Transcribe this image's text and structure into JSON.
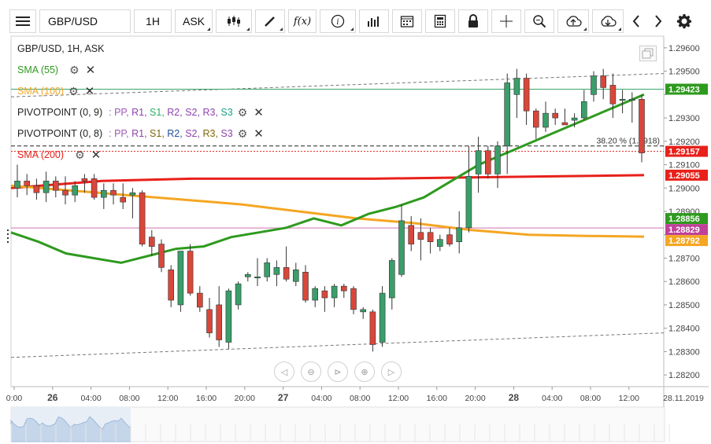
{
  "toolbar": {
    "symbol": "GBP/USD",
    "timeframe": "1H",
    "price_type": "ASK",
    "buttons": [
      "menu-icon",
      "candles-icon",
      "draw-icon",
      "function-icon",
      "info-icon",
      "bars-icon",
      "calendar-icon",
      "calculator-icon",
      "lock-icon",
      "crosshair-icon",
      "zoom-icon",
      "upload-icon",
      "download-icon",
      "chevron-left-icon",
      "chevron-right-icon",
      "gear-icon"
    ]
  },
  "legend": {
    "header": "GBP/USD, 1H, ASK",
    "sma55": "SMA (55)",
    "sma100": "SMA (100)",
    "pivot1_label": "PIVOTPOINT (0, 9)",
    "pivot1_levels": [
      {
        "t": ": PP, ",
        "c": "#9b59b6"
      },
      {
        "t": "R1, ",
        "c": "#8e44ad"
      },
      {
        "t": "S1, ",
        "c": "#27ae60"
      },
      {
        "t": "R2, ",
        "c": "#8e44ad"
      },
      {
        "t": "S2, ",
        "c": "#8e44ad"
      },
      {
        "t": "R3, ",
        "c": "#8e44ad"
      },
      {
        "t": "S3",
        "c": "#16a085"
      }
    ],
    "pivot2_label": "PIVOTPOINT (0, 8)",
    "pivot2_levels": [
      {
        "t": ": PP, ",
        "c": "#9b59b6"
      },
      {
        "t": "R1, ",
        "c": "#8e44ad"
      },
      {
        "t": "S1, ",
        "c": "#7d6608"
      },
      {
        "t": "R2, ",
        "c": "#1f4e9c"
      },
      {
        "t": "S2, ",
        "c": "#8e44ad"
      },
      {
        "t": "R3, ",
        "c": "#7d6608"
      },
      {
        "t": "S3",
        "c": "#8e44ad"
      }
    ],
    "sma200": "SMA (200)"
  },
  "colors": {
    "sma55": "#2e9a1e",
    "sma100": "#f5a623",
    "sma200": "#e8201a",
    "up": "#3a9e6a",
    "down": "#d9473a",
    "pivot": "#d98ec0"
  },
  "chart_data": {
    "type": "candlestick",
    "symbol": "GBP/USD",
    "interval": "1H",
    "ylim": [
      1.2815,
      1.2965
    ],
    "y_ticks": [
      1.296,
      1.295,
      1.294,
      1.293,
      1.292,
      1.291,
      1.29,
      1.289,
      1.288,
      1.287,
      1.286,
      1.285,
      1.284,
      1.283,
      1.282
    ],
    "y_tick_labels": [
      "1.29600",
      "1.29500",
      "",
      "1.29300",
      "1.29200",
      "1.29100",
      "1.29000",
      "1.28900",
      "",
      "1.28700",
      "1.28600",
      "1.28500",
      "1.28400",
      "1.28300",
      "1.28200"
    ],
    "x_ticks": [
      {
        "i": 0,
        "label": "0:00"
      },
      {
        "i": 2,
        "label": "26"
      },
      {
        "i": 4,
        "label": "04:00"
      },
      {
        "i": 6,
        "label": "08:00"
      },
      {
        "i": 8,
        "label": "12:00"
      },
      {
        "i": 10,
        "label": "16:00"
      },
      {
        "i": 12,
        "label": "20:00"
      },
      {
        "i": 14,
        "label": "27"
      },
      {
        "i": 16,
        "label": "04:00"
      },
      {
        "i": 18,
        "label": "08:00"
      },
      {
        "i": 20,
        "label": "12:00"
      },
      {
        "i": 22,
        "label": "16:00"
      },
      {
        "i": 24,
        "label": "20:00"
      },
      {
        "i": 26,
        "label": "28"
      },
      {
        "i": 28,
        "label": "04:00"
      },
      {
        "i": 30,
        "label": "08:00"
      },
      {
        "i": 32,
        "label": "12:00"
      }
    ],
    "x_last_label": "28.11.2019",
    "candles": [
      [
        1.29,
        1.291,
        1.2896,
        1.2903
      ],
      [
        1.2903,
        1.2906,
        1.2897,
        1.2901
      ],
      [
        1.2901,
        1.2904,
        1.2895,
        1.2898
      ],
      [
        1.2898,
        1.2907,
        1.2894,
        1.2903
      ],
      [
        1.2903,
        1.2905,
        1.2896,
        1.2899
      ],
      [
        1.2899,
        1.2905,
        1.2893,
        1.2897
      ],
      [
        1.2897,
        1.2903,
        1.2894,
        1.2901
      ],
      [
        1.2904,
        1.2906,
        1.2898,
        1.2903
      ],
      [
        1.2904,
        1.2906,
        1.2895,
        1.2896
      ],
      [
        1.2896,
        1.2902,
        1.2891,
        1.2899
      ],
      [
        1.2899,
        1.2902,
        1.2893,
        1.2897
      ],
      [
        1.2896,
        1.2902,
        1.2891,
        1.2894
      ],
      [
        1.2897,
        1.29,
        1.2887,
        1.2898
      ],
      [
        1.2898,
        1.2899,
        1.2875,
        1.2876
      ],
      [
        1.2879,
        1.2882,
        1.2871,
        1.2875
      ],
      [
        1.2876,
        1.2878,
        1.2864,
        1.2866
      ],
      [
        1.2865,
        1.2867,
        1.2849,
        1.2852
      ],
      [
        1.285,
        1.2872,
        1.2847,
        1.2873
      ],
      [
        1.2873,
        1.2876,
        1.2854,
        1.2855
      ],
      [
        1.2855,
        1.2858,
        1.2847,
        1.2849
      ],
      [
        1.2848,
        1.2853,
        1.2836,
        1.2838
      ],
      [
        1.285,
        1.2858,
        1.2832,
        1.2835
      ],
      [
        1.2834,
        1.2857,
        1.2831,
        1.2856
      ],
      [
        1.285,
        1.286,
        1.2848,
        1.2859
      ],
      [
        1.2862,
        1.2864,
        1.286,
        1.2863
      ],
      [
        1.2862,
        1.287,
        1.2858,
        1.2862
      ],
      [
        1.2862,
        1.287,
        1.286,
        1.2868
      ],
      [
        1.2863,
        1.2869,
        1.2858,
        1.2866
      ],
      [
        1.2866,
        1.2875,
        1.286,
        1.2861
      ],
      [
        1.286,
        1.2868,
        1.2858,
        1.2865
      ],
      [
        1.2864,
        1.2867,
        1.2851,
        1.2852
      ],
      [
        1.2852,
        1.2858,
        1.2849,
        1.2857
      ],
      [
        1.2856,
        1.2858,
        1.2847,
        1.2853
      ],
      [
        1.2853,
        1.2859,
        1.2849,
        1.2858
      ],
      [
        1.2858,
        1.2859,
        1.2853,
        1.2856
      ],
      [
        1.2857,
        1.2858,
        1.2846,
        1.2848
      ],
      [
        1.2847,
        1.2849,
        1.2844,
        1.2848
      ],
      [
        1.2847,
        1.2848,
        1.283,
        1.2833
      ],
      [
        1.2834,
        1.2858,
        1.2832,
        1.2855
      ],
      [
        1.2853,
        1.287,
        1.2848,
        1.2869
      ],
      [
        1.2863,
        1.2893,
        1.2862,
        1.2886
      ],
      [
        1.2884,
        1.2888,
        1.2873,
        1.2876
      ],
      [
        1.2881,
        1.2887,
        1.2869,
        1.2878
      ],
      [
        1.2881,
        1.2883,
        1.2872,
        1.2877
      ],
      [
        1.2875,
        1.288,
        1.2873,
        1.2878
      ],
      [
        1.288,
        1.2883,
        1.2875,
        1.2876
      ],
      [
        1.2877,
        1.289,
        1.2872,
        1.2883
      ],
      [
        1.2883,
        1.2918,
        1.2881,
        1.2905
      ],
      [
        1.2906,
        1.2922,
        1.2898,
        1.2916
      ],
      [
        1.2916,
        1.2918,
        1.2904,
        1.2906
      ],
      [
        1.2906,
        1.292,
        1.29,
        1.2918
      ],
      [
        1.2918,
        1.2949,
        1.2906,
        1.2945
      ],
      [
        1.294,
        1.2951,
        1.293,
        1.2947
      ],
      [
        1.2947,
        1.2949,
        1.2927,
        1.2933
      ],
      [
        1.2933,
        1.2934,
        1.2921,
        1.2926
      ],
      [
        1.2926,
        1.2937,
        1.2924,
        1.2932
      ],
      [
        1.2932,
        1.2934,
        1.2927,
        1.293
      ],
      [
        1.2928,
        1.2934,
        1.2927,
        1.2927
      ],
      [
        1.2929,
        1.2932,
        1.2926,
        1.293
      ],
      [
        1.293,
        1.2942,
        1.2929,
        1.2937
      ],
      [
        1.294,
        1.295,
        1.2937,
        1.2948
      ],
      [
        1.2948,
        1.2951,
        1.2938,
        1.2943
      ],
      [
        1.2944,
        1.2949,
        1.293,
        1.2936
      ],
      [
        1.2938,
        1.2942,
        1.2932,
        1.2938
      ],
      [
        1.2938,
        1.2941,
        1.2928,
        1.2938
      ],
      [
        1.2938,
        1.294,
        1.2911,
        1.2915
      ]
    ],
    "sma55": [
      [
        0,
        1.2881
      ],
      [
        8,
        1.2877
      ],
      [
        16,
        1.2872
      ],
      [
        24,
        1.287
      ],
      [
        32,
        1.2868
      ],
      [
        40,
        1.2871
      ],
      [
        48,
        1.2874
      ],
      [
        56,
        1.2875
      ],
      [
        64,
        1.2879
      ],
      [
        72,
        1.2881
      ],
      [
        80,
        1.2883
      ],
      [
        88,
        1.2887
      ],
      [
        96,
        1.2884
      ],
      [
        104,
        1.2889
      ],
      [
        112,
        1.2892
      ],
      [
        120,
        1.2896
      ],
      [
        128,
        1.2903
      ],
      [
        136,
        1.291
      ],
      [
        144,
        1.2915
      ],
      [
        152,
        1.292
      ],
      [
        160,
        1.2925
      ],
      [
        168,
        1.293
      ],
      [
        176,
        1.2935
      ],
      [
        184,
        1.294
      ]
    ],
    "sma100": [
      [
        0,
        1.2901
      ],
      [
        10,
        1.2899
      ],
      [
        20,
        1.2897
      ],
      [
        30,
        1.2895
      ],
      [
        40,
        1.2893
      ],
      [
        50,
        1.289
      ],
      [
        60,
        1.2887
      ],
      [
        70,
        1.2885
      ],
      [
        80,
        1.2882
      ],
      [
        90,
        1.288
      ],
      [
        100,
        1.28795
      ],
      [
        110,
        1.28792
      ]
    ],
    "sma200": [
      [
        0,
        1.29
      ],
      [
        20,
        1.2903
      ],
      [
        40,
        1.2904
      ],
      [
        60,
        1.2904
      ],
      [
        80,
        1.2904
      ],
      [
        100,
        1.29045
      ],
      [
        120,
        1.2905
      ],
      [
        140,
        1.29055
      ]
    ],
    "sma55_last": 1.28856,
    "sma100_last": 1.28792,
    "sma200_last": 1.29055,
    "pivot_level": 1.28829,
    "current_price": 1.29157,
    "green_level": 1.29423,
    "fib_level": 1.2918,
    "fib_label": "38.20 % (1.2918)",
    "price_labels": [
      {
        "v": 1.29423,
        "text": "1.29423",
        "bg": "#2e9a1e"
      },
      {
        "v": 1.29157,
        "text": "1.29157",
        "bg": "#e8201a"
      },
      {
        "v": 1.29055,
        "text": "1.29055",
        "bg": "#e8201a"
      },
      {
        "v": 1.28856,
        "text": "1.28856",
        "bg": "#2e9a1e"
      },
      {
        "v": 1.28829,
        "text": "1.28829",
        "bg": "#c0409a"
      },
      {
        "v": 1.28792,
        "text": "1.28792",
        "bg": "#f5a623"
      }
    ],
    "channel_upper": [
      [
        1.2939,
        0
      ],
      [
        1.2949,
        65
      ]
    ],
    "channel_lower": [
      [
        1.28275,
        0
      ],
      [
        1.2838,
        65
      ]
    ]
  }
}
